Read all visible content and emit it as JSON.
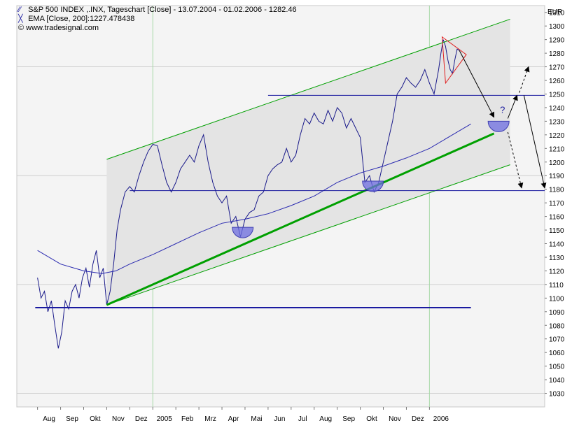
{
  "chart_data": {
    "type": "line",
    "title": "S&P 500 INDEX ,.INX, Tageschart [Close] - 13.07.2004 - 01.02.2006 - 1282.46",
    "legend": [
      {
        "label": "S&P 500 INDEX ,.INX, Tageschart [Close] - 13.07.2004 - 01.02.2006 - 1282.46",
        "icon": "line-icon"
      },
      {
        "label": "EMA [Close, 200]:1227.478438",
        "icon": "ema-icon"
      }
    ],
    "watermark": "© www.tradesignal.com",
    "currency": "EUR",
    "ylim": [
      1020,
      1315
    ],
    "yticks": [
      1030,
      1040,
      1050,
      1060,
      1070,
      1080,
      1090,
      1100,
      1110,
      1120,
      1130,
      1140,
      1150,
      1160,
      1170,
      1180,
      1190,
      1200,
      1210,
      1220,
      1230,
      1240,
      1250,
      1260,
      1270,
      1280,
      1290,
      1300,
      1310
    ],
    "xticks": [
      {
        "label": "Aug",
        "t": 0.5
      },
      {
        "label": "Sep",
        "t": 1.5
      },
      {
        "label": "Okt",
        "t": 2.5
      },
      {
        "label": "Nov",
        "t": 3.5
      },
      {
        "label": "Dez",
        "t": 4.5
      },
      {
        "label": "2005",
        "t": 5.5
      },
      {
        "label": "Feb",
        "t": 6.5
      },
      {
        "label": "Mrz",
        "t": 7.5
      },
      {
        "label": "Apr",
        "t": 8.5
      },
      {
        "label": "Mai",
        "t": 9.5
      },
      {
        "label": "Jun",
        "t": 10.5
      },
      {
        "label": "Jul",
        "t": 11.5
      },
      {
        "label": "Aug",
        "t": 12.5
      },
      {
        "label": "Sep",
        "t": 13.5
      },
      {
        "label": "Okt",
        "t": 14.5
      },
      {
        "label": "Nov",
        "t": 15.5
      },
      {
        "label": "Dez",
        "t": 16.5
      },
      {
        "label": "2006",
        "t": 17.5
      }
    ],
    "price_series": [
      [
        0,
        1115
      ],
      [
        0.15,
        1100
      ],
      [
        0.3,
        1105
      ],
      [
        0.45,
        1090
      ],
      [
        0.6,
        1098
      ],
      [
        0.75,
        1080
      ],
      [
        0.9,
        1063
      ],
      [
        1.05,
        1075
      ],
      [
        1.2,
        1098
      ],
      [
        1.35,
        1092
      ],
      [
        1.5,
        1105
      ],
      [
        1.65,
        1110
      ],
      [
        1.8,
        1100
      ],
      [
        1.95,
        1115
      ],
      [
        2.1,
        1122
      ],
      [
        2.25,
        1108
      ],
      [
        2.4,
        1125
      ],
      [
        2.55,
        1135
      ],
      [
        2.7,
        1115
      ],
      [
        2.85,
        1122
      ],
      [
        3.0,
        1095
      ],
      [
        3.15,
        1105
      ],
      [
        3.3,
        1125
      ],
      [
        3.45,
        1150
      ],
      [
        3.6,
        1165
      ],
      [
        3.8,
        1178
      ],
      [
        4.0,
        1182
      ],
      [
        4.2,
        1178
      ],
      [
        4.4,
        1190
      ],
      [
        4.6,
        1200
      ],
      [
        4.8,
        1208
      ],
      [
        5.0,
        1213
      ],
      [
        5.2,
        1212
      ],
      [
        5.4,
        1198
      ],
      [
        5.6,
        1185
      ],
      [
        5.8,
        1178
      ],
      [
        6.0,
        1185
      ],
      [
        6.2,
        1195
      ],
      [
        6.4,
        1200
      ],
      [
        6.6,
        1205
      ],
      [
        6.8,
        1200
      ],
      [
        7.0,
        1212
      ],
      [
        7.2,
        1220
      ],
      [
        7.4,
        1200
      ],
      [
        7.6,
        1185
      ],
      [
        7.8,
        1175
      ],
      [
        8.0,
        1170
      ],
      [
        8.2,
        1175
      ],
      [
        8.4,
        1155
      ],
      [
        8.6,
        1160
      ],
      [
        8.8,
        1145
      ],
      [
        9.0,
        1158
      ],
      [
        9.2,
        1163
      ],
      [
        9.4,
        1165
      ],
      [
        9.6,
        1175
      ],
      [
        9.8,
        1178
      ],
      [
        10.0,
        1190
      ],
      [
        10.2,
        1195
      ],
      [
        10.4,
        1198
      ],
      [
        10.6,
        1200
      ],
      [
        10.8,
        1210
      ],
      [
        11.0,
        1200
      ],
      [
        11.2,
        1205
      ],
      [
        11.4,
        1220
      ],
      [
        11.6,
        1232
      ],
      [
        11.8,
        1228
      ],
      [
        12.0,
        1236
      ],
      [
        12.2,
        1230
      ],
      [
        12.4,
        1228
      ],
      [
        12.6,
        1238
      ],
      [
        12.8,
        1230
      ],
      [
        13.0,
        1240
      ],
      [
        13.2,
        1236
      ],
      [
        13.4,
        1225
      ],
      [
        13.6,
        1232
      ],
      [
        13.8,
        1225
      ],
      [
        14.0,
        1218
      ],
      [
        14.2,
        1185
      ],
      [
        14.4,
        1190
      ],
      [
        14.6,
        1178
      ],
      [
        14.8,
        1185
      ],
      [
        15.0,
        1200
      ],
      [
        15.2,
        1215
      ],
      [
        15.4,
        1230
      ],
      [
        15.6,
        1250
      ],
      [
        15.8,
        1255
      ],
      [
        16.0,
        1262
      ],
      [
        16.2,
        1258
      ],
      [
        16.4,
        1255
      ],
      [
        16.6,
        1260
      ],
      [
        16.8,
        1268
      ],
      [
        17.0,
        1258
      ],
      [
        17.2,
        1250
      ],
      [
        17.4,
        1268
      ],
      [
        17.5,
        1280
      ],
      [
        17.6,
        1290
      ],
      [
        17.7,
        1285
      ],
      [
        17.8,
        1275
      ],
      [
        17.9,
        1268
      ],
      [
        18.0,
        1265
      ],
      [
        18.1,
        1275
      ],
      [
        18.2,
        1283
      ],
      [
        18.3,
        1282
      ]
    ],
    "ema_series": [
      [
        0,
        1135
      ],
      [
        1.0,
        1125
      ],
      [
        2.0,
        1120
      ],
      [
        2.8,
        1118
      ],
      [
        3.4,
        1120
      ],
      [
        4.0,
        1125
      ],
      [
        5.0,
        1132
      ],
      [
        6.0,
        1140
      ],
      [
        7.0,
        1148
      ],
      [
        8.0,
        1155
      ],
      [
        9.0,
        1158
      ],
      [
        10.0,
        1162
      ],
      [
        11.0,
        1168
      ],
      [
        12.0,
        1175
      ],
      [
        13.0,
        1185
      ],
      [
        14.0,
        1192
      ],
      [
        15.0,
        1197
      ],
      [
        16.0,
        1203
      ],
      [
        17.0,
        1210
      ],
      [
        18.0,
        1220
      ],
      [
        18.8,
        1228
      ]
    ],
    "annotations": [
      {
        "kind": "channel",
        "color": "#00a000",
        "upper": [
          [
            3.0,
            1202
          ],
          [
            20.5,
            1305
          ]
        ],
        "lower": [
          [
            3.0,
            1095
          ],
          [
            20.5,
            1198
          ]
        ]
      },
      {
        "kind": "support-line",
        "color": "#00a000",
        "points": [
          [
            3.0,
            1095
          ],
          [
            19.8,
            1221
          ]
        ]
      },
      {
        "kind": "hline",
        "color": "#1a1aa0",
        "y": 1249,
        "from": 10.0,
        "to": 24.0
      },
      {
        "kind": "hline",
        "color": "#1a1aa0",
        "y": 1179,
        "from": 4.0,
        "to": 24.0
      },
      {
        "kind": "hline",
        "color": "#1a1aa0",
        "y": 1093,
        "from": -0.1,
        "to": 18.8
      },
      {
        "kind": "bowl",
        "t": 8.9,
        "y": 1152
      },
      {
        "kind": "bowl",
        "t": 14.55,
        "y": 1186
      },
      {
        "kind": "bowl",
        "t": 20.0,
        "y": 1230,
        "label": "?"
      }
    ]
  }
}
